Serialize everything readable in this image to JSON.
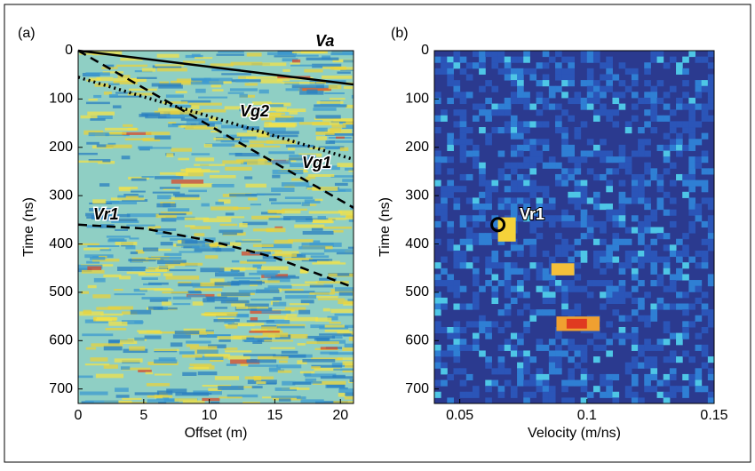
{
  "chart_data": [
    {
      "type": "line",
      "panel_label": "(a)",
      "xlabel": "Offset (m)",
      "ylabel": "Time (ns)",
      "xlim": [
        0,
        21
      ],
      "ylim": [
        0,
        730
      ],
      "y_reversed": true,
      "xticks": [
        0,
        5,
        10,
        15,
        20
      ],
      "yticks": [
        0,
        100,
        200,
        300,
        400,
        500,
        600,
        700
      ],
      "series": [
        {
          "name": "Va",
          "color": "#000000",
          "dash": "solid",
          "x": [
            0,
            21
          ],
          "values": [
            0,
            70
          ]
        },
        {
          "name": "Vg2",
          "color": "#000000",
          "dash": "dotted",
          "x": [
            0,
            21
          ],
          "values": [
            55,
            225
          ]
        },
        {
          "name": "Vg1",
          "color": "#000000",
          "dash": "dashed",
          "x": [
            0,
            21
          ],
          "values": [
            0,
            325
          ]
        },
        {
          "name": "Vr1",
          "color": "#000000",
          "dash": "dashed",
          "x": [
            0,
            5,
            10,
            15,
            21
          ],
          "values": [
            360,
            368,
            393,
            428,
            490
          ]
        }
      ]
    },
    {
      "type": "scatter",
      "panel_label": "(b)",
      "xlabel": "Velocity (m/ns)",
      "ylabel": "Time (ns)",
      "xlim": [
        0.04,
        0.15
      ],
      "ylim": [
        0,
        730
      ],
      "y_reversed": true,
      "xticks": [
        0.05,
        0.1,
        0.15
      ],
      "yticks": [
        0,
        100,
        200,
        300,
        400,
        500,
        600,
        700
      ],
      "series": [
        {
          "name": "Vr1",
          "color": "#000000",
          "x": [
            0.065
          ],
          "values": [
            360
          ]
        }
      ]
    }
  ]
}
